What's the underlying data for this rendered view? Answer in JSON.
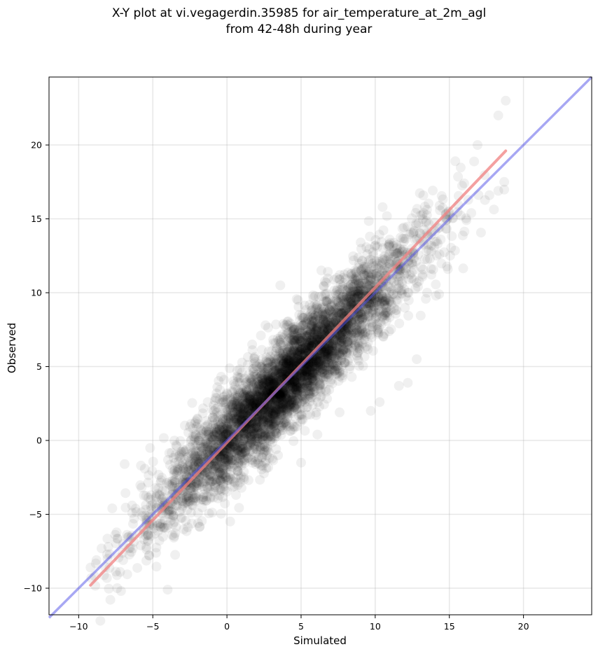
{
  "title_line1": "X-Y plot at vi.vegagerdin.35985 for air_temperature_at_2m_agl",
  "title_line2": "from 42-48h during year",
  "chart_data": {
    "type": "scatter",
    "title": "X-Y plot at vi.vegagerdin.35985 for air_temperature_at_2m_agl from 42-48h during year",
    "xlabel": "Simulated",
    "ylabel": "Observed",
    "xlim": [
      -12,
      24.6
    ],
    "ylim": [
      -11.8,
      24.6
    ],
    "xticks": [
      -10,
      -5,
      0,
      5,
      10,
      15,
      20
    ],
    "yticks": [
      -10,
      -5,
      0,
      5,
      10,
      15,
      20
    ],
    "xtick_labels": [
      "−10",
      "−5",
      "0",
      "5",
      "10",
      "15",
      "20"
    ],
    "ytick_labels": [
      "−10",
      "−5",
      "0",
      "5",
      "10",
      "15",
      "20"
    ],
    "grid": true,
    "series": [
      {
        "kind": "points",
        "color": "#000000",
        "alpha": 0.06,
        "x_range": [
          -9.2,
          18.8
        ],
        "relation": "observed ≈ simulated",
        "sample_points": [
          [
            -9.2,
            -8.6
          ],
          [
            -8.8,
            -8.1
          ],
          [
            -8.0,
            -7.2
          ],
          [
            -7.4,
            -10.0
          ],
          [
            -6.9,
            -1.6
          ],
          [
            -5.8,
            -1.7
          ],
          [
            -4.0,
            -10.1
          ],
          [
            -3.7,
            -6.4
          ],
          [
            -2.1,
            1.3
          ],
          [
            -1.3,
            2.6
          ],
          [
            0.0,
            3.2
          ],
          [
            1.2,
            -0.8
          ],
          [
            1.7,
            6.5
          ],
          [
            2.6,
            7.8
          ],
          [
            3.6,
            10.5
          ],
          [
            5.0,
            -1.5
          ],
          [
            6.1,
            0.4
          ],
          [
            7.6,
            1.9
          ],
          [
            9.7,
            2.0
          ],
          [
            10.3,
            2.6
          ],
          [
            10.5,
            15.8
          ],
          [
            11.6,
            3.7
          ],
          [
            12.2,
            3.9
          ],
          [
            12.8,
            5.5
          ],
          [
            13.5,
            10.0
          ],
          [
            14.1,
            9.8
          ],
          [
            14.9,
            11.6
          ],
          [
            15.4,
            18.9
          ],
          [
            16.0,
            17.4
          ],
          [
            16.9,
            20.0
          ],
          [
            17.7,
            16.6
          ],
          [
            18.3,
            16.9
          ],
          [
            18.3,
            22.0
          ],
          [
            18.7,
            17.5
          ],
          [
            18.8,
            23.0
          ]
        ]
      },
      {
        "kind": "regression",
        "color": "#f08080",
        "x": [
          -9.2,
          18.8
        ],
        "y": [
          -9.8,
          19.6
        ]
      },
      {
        "kind": "identity",
        "color": "#4f4fe8",
        "x": [
          -12,
          24.6
        ],
        "y": [
          -12,
          24.6
        ]
      }
    ]
  }
}
